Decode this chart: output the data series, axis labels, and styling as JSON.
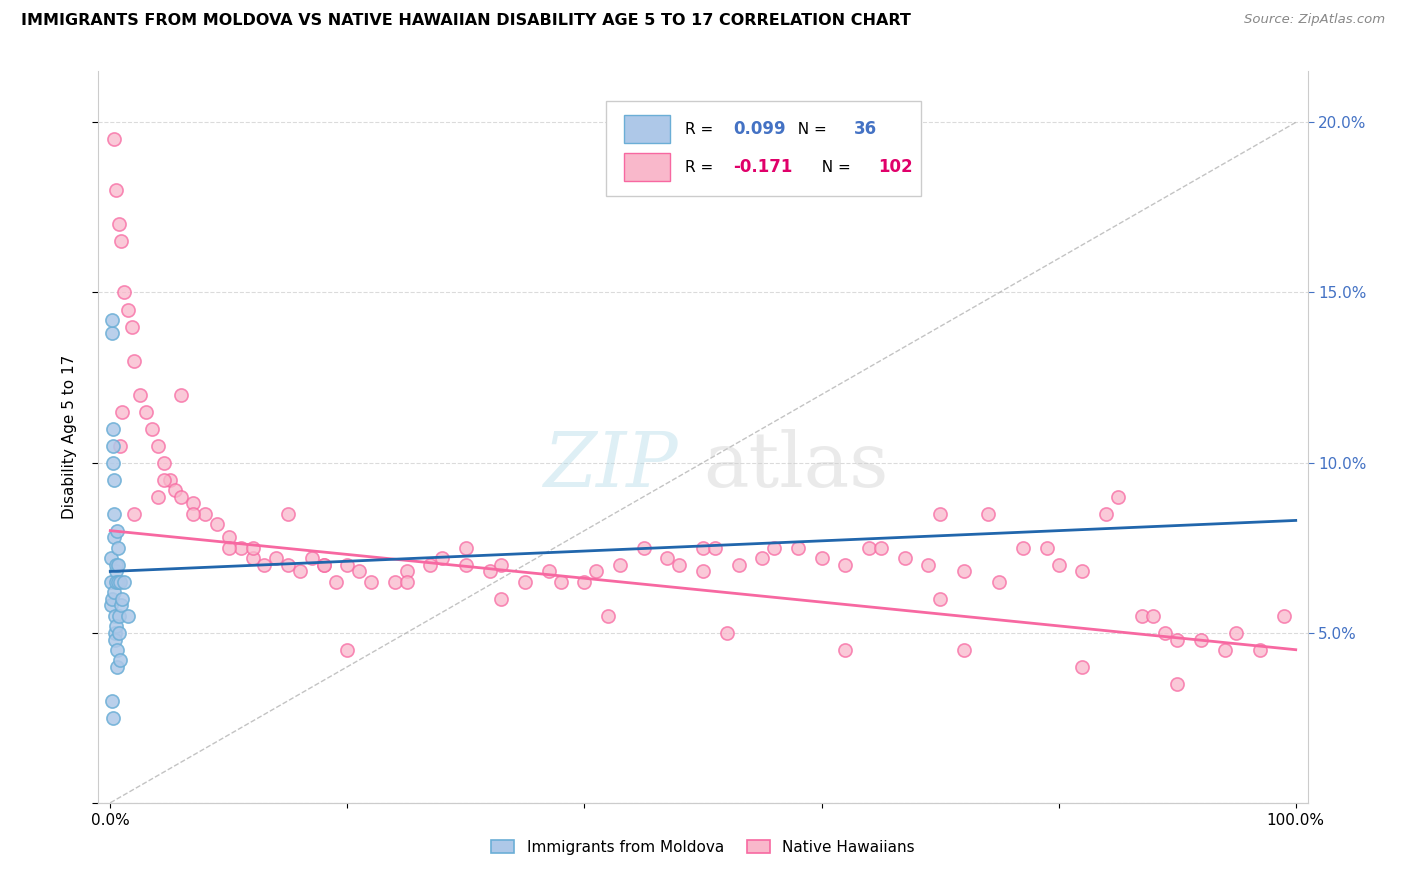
{
  "title": "IMMIGRANTS FROM MOLDOVA VS NATIVE HAWAIIAN DISABILITY AGE 5 TO 17 CORRELATION CHART",
  "source": "Source: ZipAtlas.com",
  "ylabel": "Disability Age 5 to 17",
  "xlim": [
    -1,
    101
  ],
  "ylim": [
    0,
    21.5
  ],
  "xticks": [
    0,
    20,
    40,
    60,
    80,
    100
  ],
  "xticklabels": [
    "0.0%",
    "",
    "",
    "",
    "",
    "100.0%"
  ],
  "yticks_right": [
    5,
    10,
    15,
    20
  ],
  "yticklabels_right": [
    "5.0%",
    "10.0%",
    "15.0%",
    "20.0%"
  ],
  "legend1_r": "0.099",
  "legend1_n": "36",
  "legend2_r": "-0.171",
  "legend2_n": "102",
  "blue_fill": "#aec8e8",
  "blue_edge": "#6baed6",
  "pink_fill": "#f9b8cb",
  "pink_edge": "#f768a1",
  "blue_line_color": "#2166ac",
  "pink_line_color": "#f768a1",
  "blue_scatter_x": [
    0.05,
    0.08,
    0.1,
    0.12,
    0.15,
    0.18,
    0.2,
    0.22,
    0.25,
    0.28,
    0.3,
    0.32,
    0.35,
    0.38,
    0.4,
    0.42,
    0.45,
    0.48,
    0.5,
    0.52,
    0.55,
    0.58,
    0.6,
    0.62,
    0.65,
    0.68,
    0.7,
    0.75,
    0.8,
    0.85,
    0.9,
    1.0,
    1.2,
    1.5,
    0.15,
    0.25
  ],
  "blue_scatter_y": [
    6.5,
    5.8,
    7.2,
    6.0,
    13.8,
    14.2,
    11.0,
    10.5,
    10.0,
    9.5,
    8.5,
    7.8,
    6.2,
    5.5,
    5.0,
    4.8,
    6.8,
    7.0,
    6.5,
    5.2,
    4.5,
    4.0,
    8.0,
    7.5,
    7.0,
    6.5,
    5.0,
    5.5,
    6.5,
    4.2,
    5.8,
    6.0,
    6.5,
    5.5,
    3.0,
    2.5
  ],
  "pink_scatter_x": [
    0.3,
    0.5,
    0.7,
    0.9,
    1.2,
    1.5,
    1.8,
    2.0,
    2.5,
    3.0,
    3.5,
    4.0,
    4.5,
    5.0,
    5.5,
    6.0,
    7.0,
    8.0,
    9.0,
    10.0,
    11.0,
    12.0,
    13.0,
    14.0,
    15.0,
    16.0,
    17.0,
    18.0,
    19.0,
    20.0,
    21.0,
    22.0,
    24.0,
    25.0,
    27.0,
    28.0,
    30.0,
    32.0,
    33.0,
    35.0,
    37.0,
    38.0,
    40.0,
    41.0,
    43.0,
    45.0,
    47.0,
    48.0,
    50.0,
    51.0,
    53.0,
    55.0,
    56.0,
    58.0,
    60.0,
    62.0,
    64.0,
    65.0,
    67.0,
    69.0,
    70.0,
    72.0,
    74.0,
    75.0,
    77.0,
    79.0,
    80.0,
    82.0,
    84.0,
    85.0,
    87.0,
    89.0,
    90.0,
    92.0,
    94.0,
    95.0,
    97.0,
    99.0,
    2.0,
    4.0,
    7.0,
    12.0,
    18.0,
    25.0,
    33.0,
    42.0,
    52.0,
    62.0,
    72.0,
    82.0,
    90.0,
    1.0,
    6.0,
    15.0,
    30.0,
    50.0,
    70.0,
    88.0,
    0.8,
    4.5,
    10.0,
    20.0
  ],
  "pink_scatter_y": [
    19.5,
    18.0,
    17.0,
    16.5,
    15.0,
    14.5,
    14.0,
    13.0,
    12.0,
    11.5,
    11.0,
    10.5,
    10.0,
    9.5,
    9.2,
    9.0,
    8.8,
    8.5,
    8.2,
    7.8,
    7.5,
    7.2,
    7.0,
    7.2,
    7.0,
    6.8,
    7.2,
    7.0,
    6.5,
    7.0,
    6.8,
    6.5,
    6.5,
    6.8,
    7.0,
    7.2,
    7.0,
    6.8,
    7.0,
    6.5,
    6.8,
    6.5,
    6.5,
    6.8,
    7.0,
    7.5,
    7.2,
    7.0,
    7.5,
    7.5,
    7.0,
    7.2,
    7.5,
    7.5,
    7.2,
    7.0,
    7.5,
    7.5,
    7.2,
    7.0,
    8.5,
    6.8,
    8.5,
    6.5,
    7.5,
    7.5,
    7.0,
    6.8,
    8.5,
    9.0,
    5.5,
    5.0,
    4.8,
    4.8,
    4.5,
    5.0,
    4.5,
    5.5,
    8.5,
    9.0,
    8.5,
    7.5,
    7.0,
    6.5,
    6.0,
    5.5,
    5.0,
    4.5,
    4.5,
    4.0,
    3.5,
    11.5,
    12.0,
    8.5,
    7.5,
    6.8,
    6.0,
    5.5,
    10.5,
    9.5,
    7.5,
    4.5
  ]
}
